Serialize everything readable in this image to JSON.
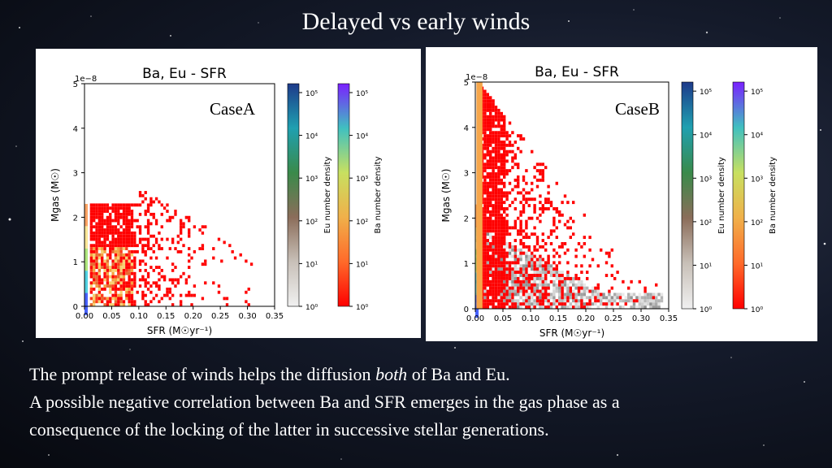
{
  "slide": {
    "title": "Delayed vs early winds",
    "line1_pre": "The prompt release of winds helps the diffusion ",
    "line1_em": "both",
    "line1_post": " of Ba and Eu.",
    "line2": "A possible negative correlation between Ba and SFR emerges in the gas phase as a",
    "line3": "consequence of the locking of the latter in successive stellar generations."
  },
  "colors": {
    "ba_red": "#ff0000",
    "eu_grey": "#8c8c8c"
  },
  "chart_data": [
    {
      "type": "heatmap",
      "title": "Ba, Eu - SFR",
      "case_label": "CaseA",
      "xlabel": "SFR (M☉yr⁻¹)",
      "ylabel": "Mgas (M☉)",
      "y_multiplier": "1e−8",
      "xlim": [
        0.0,
        0.35
      ],
      "ylim": [
        0,
        5
      ],
      "x_ticks": [
        "0.00",
        "0.05",
        "0.10",
        "0.15",
        "0.20",
        "0.25",
        "0.30",
        "0.35"
      ],
      "y_ticks": [
        "0",
        "1",
        "2",
        "3",
        "4",
        "5"
      ],
      "colorbars": [
        {
          "label": "Eu number density",
          "scale": "log",
          "ticks": [
            "10⁰",
            "10¹",
            "10²",
            "10³",
            "10⁴",
            "10⁵"
          ]
        },
        {
          "label": "Ba number density",
          "scale": "log",
          "ticks": [
            "10⁰",
            "10¹",
            "10²",
            "10³",
            "10⁴",
            "10⁵"
          ]
        }
      ],
      "distribution": {
        "ba_sfr_extent": [
          0.0,
          0.32
        ],
        "ba_mgas_max": 2.6,
        "dense_core_sfr": [
          0.01,
          0.09
        ],
        "dense_core_mgas": [
          0.0,
          1.4
        ],
        "eu_grey_band": false
      }
    },
    {
      "type": "heatmap",
      "title": "Ba, Eu - SFR",
      "case_label": "CaseB",
      "xlabel": "SFR (M☉yr⁻¹)",
      "ylabel": "Mgas (M☉)",
      "y_multiplier": "1e−8",
      "xlim": [
        0.0,
        0.35
      ],
      "ylim": [
        0,
        5
      ],
      "x_ticks": [
        "0.00",
        "0.05",
        "0.10",
        "0.15",
        "0.20",
        "0.25",
        "0.30",
        "0.35"
      ],
      "y_ticks": [
        "0",
        "1",
        "2",
        "3",
        "4",
        "5"
      ],
      "colorbars": [
        {
          "label": "Eu number density",
          "scale": "log",
          "ticks": [
            "10⁰",
            "10¹",
            "10²",
            "10³",
            "10⁴",
            "10⁵"
          ]
        },
        {
          "label": "Ba number density",
          "scale": "log",
          "ticks": [
            "10⁰",
            "10¹",
            "10²",
            "10³",
            "10⁴",
            "10⁵"
          ]
        }
      ],
      "distribution": {
        "ba_sfr_extent": [
          0.0,
          0.34
        ],
        "ba_mgas_max": 5.0,
        "dense_core_sfr": [
          0.0,
          0.05
        ],
        "dense_core_mgas": [
          0.0,
          5.0
        ],
        "eu_grey_band": true
      }
    }
  ]
}
